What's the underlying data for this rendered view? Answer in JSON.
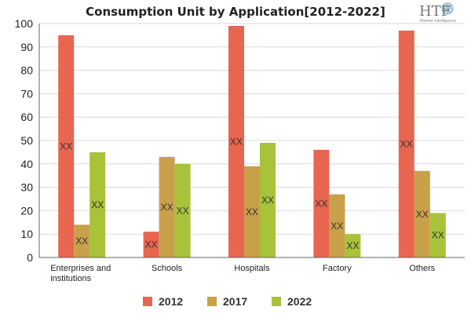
{
  "chart_data": {
    "type": "bar",
    "title": "Consumption Unit by  Application[2012-2022]",
    "xlabel": "",
    "ylabel": "",
    "categories": [
      "Enterprises and institutions",
      "Schools",
      "Hospitals",
      "Factory",
      "Others"
    ],
    "series": [
      {
        "name": "2012",
        "values": [
          95,
          11,
          99,
          46,
          97
        ],
        "color": "#e8654f"
      },
      {
        "name": "2017",
        "values": [
          14,
          43,
          39,
          27,
          37
        ],
        "color": "#c9a04a"
      },
      {
        "name": "2022",
        "values": [
          45,
          40,
          49,
          10,
          19
        ],
        "color": "#a8c23a"
      }
    ],
    "data_label": "XX",
    "ylim": [
      0,
      100
    ],
    "yticks": [
      0,
      10,
      20,
      30,
      40,
      50,
      60,
      70,
      80,
      90,
      100
    ],
    "grid": true,
    "legend_position": "bottom-center"
  },
  "logo": {
    "text": "HTF",
    "subtext": "Market Intelligence",
    "icon": "globe-icon"
  }
}
